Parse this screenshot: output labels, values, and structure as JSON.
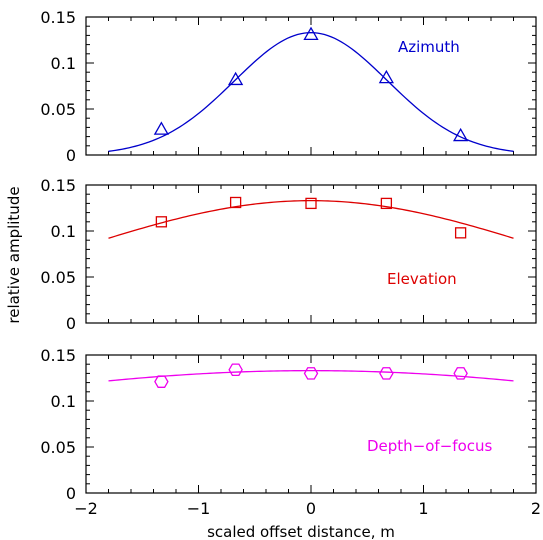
{
  "chart_data": {
    "type": "line",
    "xlabel": "scaled offset distance, m",
    "ylabel": "relative amplitude",
    "xlim": [
      -2,
      2
    ],
    "x_ticks": [
      -2,
      -1,
      0,
      1,
      2
    ],
    "x_tick_labels": [
      "−2",
      "−1",
      "0",
      "1",
      "2"
    ],
    "grid": false,
    "panels": [
      {
        "name": "Azimuth",
        "label": "Azimuth",
        "color": "#0000cc",
        "marker": "triangle",
        "ylim": [
          0,
          0.15
        ],
        "y_ticks": [
          0,
          0.05,
          0.1,
          0.15
        ],
        "y_tick_labels": [
          "0",
          "0.05",
          "0.1",
          "0.15"
        ],
        "points": {
          "x": [
            -1.33,
            -0.67,
            0,
            0.67,
            1.33
          ],
          "y": [
            0.028,
            0.082,
            0.131,
            0.084,
            0.021
          ]
        },
        "fit": {
          "x_range": [
            -1.8,
            1.8
          ],
          "peak": 0.133,
          "sigma": 0.68
        }
      },
      {
        "name": "Elevation",
        "label": "Elevation",
        "color": "#dd0000",
        "marker": "square",
        "ylim": [
          0,
          0.15
        ],
        "y_ticks": [
          0,
          0.05,
          0.1,
          0.15
        ],
        "y_tick_labels": [
          "0",
          "0.05",
          "0.1",
          "0.15"
        ],
        "points": {
          "x": [
            -1.33,
            -0.67,
            0,
            0.67,
            1.33
          ],
          "y": [
            0.11,
            0.131,
            0.13,
            0.13,
            0.098
          ]
        },
        "fit": {
          "x_range": [
            -1.8,
            1.8
          ],
          "peak": 0.133,
          "sigma": 2.1
        }
      },
      {
        "name": "Depth-of-focus",
        "label": "Depth−of−focus",
        "color": "#ee00ee",
        "marker": "hexagon",
        "ylim": [
          0,
          0.15
        ],
        "y_ticks": [
          0,
          0.05,
          0.1,
          0.15
        ],
        "y_tick_labels": [
          "0",
          "0.05",
          "0.1",
          "0.15"
        ],
        "points": {
          "x": [
            -1.33,
            -0.67,
            0,
            0.67,
            1.33
          ],
          "y": [
            0.121,
            0.134,
            0.13,
            0.13,
            0.13
          ]
        },
        "fit": {
          "x_range": [
            -1.8,
            1.8
          ],
          "peak": 0.133,
          "sigma": 4.3
        }
      }
    ]
  }
}
